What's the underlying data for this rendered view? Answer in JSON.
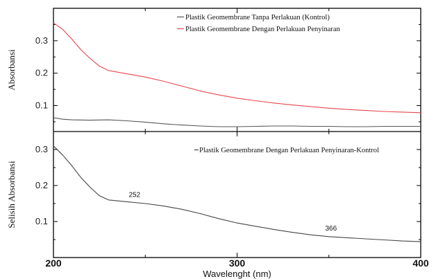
{
  "chart_data": [
    {
      "type": "line",
      "panel": "top",
      "xlabel": "",
      "ylabel": "Absorbansi",
      "xlim": [
        200,
        400
      ],
      "ylim": [
        0.02,
        0.4
      ],
      "yticks": [
        0.1,
        0.2,
        0.3
      ],
      "ytick_labels": [
        "0.1",
        "0.2",
        "0.3"
      ],
      "legend_position": "top-right",
      "grid": false,
      "series": [
        {
          "name": "Plastik Geomembrane Tanpa Perlakuan (Kontrol)",
          "color": "#555555",
          "x": [
            200,
            205,
            210,
            220,
            230,
            240,
            250,
            260,
            270,
            280,
            290,
            300,
            310,
            320,
            330,
            340,
            350,
            360,
            370,
            380,
            390,
            400
          ],
          "y": [
            0.063,
            0.058,
            0.056,
            0.055,
            0.056,
            0.053,
            0.049,
            0.044,
            0.04,
            0.037,
            0.035,
            0.035,
            0.036,
            0.037,
            0.037,
            0.036,
            0.036,
            0.035,
            0.035,
            0.036,
            0.036,
            0.036
          ]
        },
        {
          "name": "Plastik Geomembrane Dengan Perlakuan Penyinaran",
          "color": "#e8474c",
          "x": [
            200,
            205,
            210,
            215,
            220,
            225,
            230,
            240,
            250,
            260,
            270,
            280,
            290,
            300,
            310,
            320,
            330,
            340,
            350,
            360,
            370,
            380,
            390,
            400
          ],
          "y": [
            0.355,
            0.335,
            0.305,
            0.272,
            0.245,
            0.222,
            0.208,
            0.198,
            0.188,
            0.175,
            0.16,
            0.145,
            0.133,
            0.123,
            0.115,
            0.108,
            0.102,
            0.097,
            0.092,
            0.088,
            0.085,
            0.082,
            0.08,
            0.078
          ]
        }
      ]
    },
    {
      "type": "line",
      "panel": "bottom",
      "xlabel": "Wavelenght (nm)",
      "ylabel": "Selisih Absorbansi",
      "xlim": [
        200,
        400
      ],
      "ylim": [
        0.0,
        0.35
      ],
      "xticks": [
        200,
        300,
        400
      ],
      "xtick_labels": [
        "200",
        "300",
        "400"
      ],
      "yticks": [
        0.1,
        0.2,
        0.3
      ],
      "ytick_labels": [
        "0.1",
        "0.2",
        "0.3"
      ],
      "legend_position": "top-center",
      "grid": false,
      "series": [
        {
          "name": "Plastik Geomembrane Dengan Perlakuan Penyinaran-Kontrol",
          "color": "#444444",
          "x": [
            200,
            205,
            210,
            215,
            220,
            225,
            230,
            240,
            250,
            260,
            270,
            280,
            290,
            300,
            310,
            320,
            330,
            340,
            350,
            360,
            370,
            380,
            390,
            400
          ],
          "y": [
            0.31,
            0.285,
            0.255,
            0.222,
            0.195,
            0.172,
            0.16,
            0.155,
            0.15,
            0.143,
            0.134,
            0.122,
            0.108,
            0.096,
            0.087,
            0.078,
            0.07,
            0.063,
            0.058,
            0.055,
            0.052,
            0.049,
            0.046,
            0.044
          ]
        }
      ],
      "annotations": [
        {
          "text": "252",
          "x": 241,
          "y": 0.168
        },
        {
          "text": "366",
          "x": 348,
          "y": 0.075
        }
      ]
    }
  ]
}
